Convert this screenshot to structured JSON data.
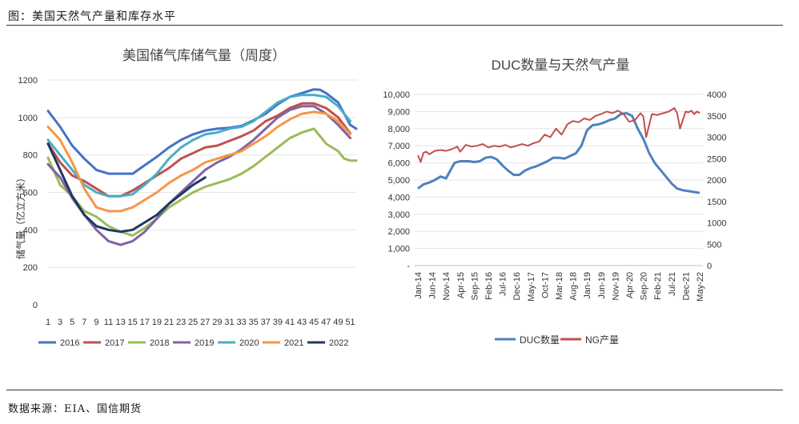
{
  "figure_title": "图：美国天然气产量和库存水平",
  "source": "数据来源：EIA、国信期货",
  "chart_data": [
    {
      "type": "line",
      "title": "美国储气库储气量（周度）",
      "ylabel": "储气量（亿立方米）",
      "xlabel": "",
      "ylim": [
        0,
        1200
      ],
      "yticks": [
        "0",
        "200",
        "400",
        "600",
        "800",
        "1000",
        "1200"
      ],
      "xlim": [
        1,
        52
      ],
      "xticks": [
        "1",
        "3",
        "5",
        "7",
        "9",
        "11",
        "13",
        "15",
        "17",
        "19",
        "21",
        "23",
        "25",
        "27",
        "29",
        "31",
        "33",
        "35",
        "37",
        "39",
        "41",
        "43",
        "45",
        "47",
        "49",
        "51"
      ],
      "grid": true,
      "legend": "bottom",
      "series": [
        {
          "name": "2016",
          "color": "#4472c4",
          "x": [
            1,
            3,
            5,
            7,
            9,
            11,
            13,
            15,
            17,
            19,
            21,
            23,
            25,
            27,
            29,
            31,
            33,
            35,
            37,
            39,
            41,
            43,
            45,
            46,
            47,
            49,
            51,
            52
          ],
          "values": [
            1035,
            950,
            850,
            780,
            720,
            700,
            700,
            700,
            745,
            790,
            840,
            880,
            910,
            930,
            940,
            945,
            955,
            985,
            1020,
            1070,
            1110,
            1130,
            1150,
            1148,
            1130,
            1080,
            960,
            940
          ]
        },
        {
          "name": "2017",
          "color": "#c0504d",
          "x": [
            1,
            3,
            5,
            7,
            9,
            11,
            13,
            15,
            17,
            19,
            21,
            23,
            25,
            27,
            29,
            31,
            33,
            35,
            37,
            39,
            41,
            43,
            45,
            47,
            49,
            51
          ],
          "values": [
            860,
            760,
            690,
            660,
            620,
            580,
            580,
            610,
            650,
            690,
            730,
            780,
            810,
            840,
            850,
            875,
            900,
            930,
            980,
            1010,
            1050,
            1075,
            1075,
            1050,
            1000,
            915
          ]
        },
        {
          "name": "2018",
          "color": "#9bbb59",
          "x": [
            1,
            3,
            5,
            7,
            9,
            11,
            13,
            15,
            17,
            19,
            21,
            23,
            25,
            27,
            29,
            31,
            33,
            35,
            37,
            39,
            41,
            43,
            45,
            47,
            49,
            50,
            51,
            52
          ],
          "values": [
            785,
            640,
            580,
            500,
            470,
            420,
            390,
            370,
            410,
            460,
            520,
            560,
            600,
            630,
            650,
            670,
            700,
            740,
            790,
            840,
            890,
            920,
            940,
            860,
            820,
            780,
            770,
            770
          ]
        },
        {
          "name": "2019",
          "color": "#8064a2",
          "x": [
            1,
            3,
            5,
            7,
            9,
            11,
            13,
            15,
            17,
            19,
            21,
            23,
            25,
            27,
            29,
            31,
            33,
            35,
            37,
            39,
            41,
            43,
            45,
            47,
            49,
            51
          ],
          "values": [
            750,
            680,
            570,
            480,
            400,
            340,
            320,
            340,
            390,
            460,
            540,
            600,
            660,
            720,
            760,
            790,
            830,
            880,
            940,
            1000,
            1040,
            1060,
            1060,
            1020,
            960,
            890
          ]
        },
        {
          "name": "2020",
          "color": "#4bacc6",
          "x": [
            1,
            3,
            5,
            7,
            9,
            11,
            13,
            15,
            17,
            19,
            21,
            23,
            25,
            27,
            29,
            31,
            33,
            35,
            37,
            39,
            41,
            43,
            45,
            47,
            49,
            51
          ],
          "values": [
            880,
            800,
            720,
            640,
            600,
            580,
            580,
            590,
            640,
            700,
            780,
            840,
            880,
            910,
            920,
            940,
            950,
            980,
            1030,
            1080,
            1110,
            1120,
            1120,
            1110,
            1060,
            980
          ]
        },
        {
          "name": "2021",
          "color": "#f79646",
          "x": [
            1,
            3,
            5,
            7,
            9,
            11,
            13,
            15,
            17,
            19,
            21,
            23,
            25,
            27,
            29,
            31,
            33,
            35,
            37,
            39,
            41,
            43,
            45,
            47,
            49,
            51
          ],
          "values": [
            950,
            880,
            760,
            620,
            520,
            500,
            500,
            520,
            560,
            600,
            650,
            690,
            720,
            760,
            780,
            800,
            820,
            860,
            900,
            950,
            990,
            1020,
            1030,
            1020,
            980,
            910
          ]
        },
        {
          "name": "2022",
          "color": "#1f3864",
          "x": [
            1,
            3,
            5,
            7,
            9,
            11,
            13,
            15,
            17,
            19,
            21,
            23,
            25,
            27
          ],
          "values": [
            860,
            720,
            580,
            480,
            420,
            400,
            390,
            400,
            440,
            480,
            540,
            590,
            640,
            680
          ]
        }
      ]
    },
    {
      "type": "line",
      "title": "DUC数量与天然气产量",
      "xlabel": "",
      "ylabel": "",
      "legend": "bottom",
      "grid": true,
      "x_tick_labels": [
        "Jan-14",
        "Jun-14",
        "Nov-14",
        "Apr-15",
        "Sep-15",
        "Feb-16",
        "Jul-16",
        "Dec-16",
        "May-17",
        "Oct-17",
        "Mar-18",
        "Aug-18",
        "Jan-19",
        "Jun-19",
        "Nov-19",
        "Apr-20",
        "Sep-20",
        "Feb-21",
        "Jul-21",
        "Dec-21",
        "May-22"
      ],
      "y_left": {
        "lim": [
          0,
          10000
        ],
        "ticks": [
          "-",
          "1,000",
          "2,000",
          "3,000",
          "4,000",
          "5,000",
          "6,000",
          "7,000",
          "8,000",
          "9,000",
          "10,000"
        ]
      },
      "y_right": {
        "lim": [
          0,
          4000
        ],
        "ticks": [
          "0",
          "500",
          "1000",
          "1500",
          "2000",
          "2500",
          "3000",
          "3500",
          "4000"
        ]
      },
      "series": [
        {
          "name": "DUC数量",
          "axis": "left",
          "color": "#4f81bd",
          "x_months": [
            0,
            2,
            4,
            6,
            8,
            10,
            12,
            13,
            15,
            18,
            20,
            22,
            24,
            26,
            28,
            30,
            32,
            34,
            36,
            38,
            40,
            42,
            44,
            46,
            48,
            50,
            52,
            54,
            56,
            58,
            60,
            62,
            64,
            66,
            68,
            70,
            72,
            74,
            76,
            78,
            80,
            82,
            84,
            86,
            88,
            90,
            92,
            94,
            96,
            98,
            100
          ],
          "values": [
            4500,
            4750,
            4850,
            5000,
            5200,
            5100,
            5700,
            6000,
            6100,
            6100,
            6050,
            6100,
            6300,
            6350,
            6200,
            5850,
            5550,
            5300,
            5300,
            5550,
            5700,
            5800,
            5950,
            6100,
            6300,
            6300,
            6250,
            6400,
            6550,
            7000,
            7900,
            8200,
            8250,
            8350,
            8500,
            8600,
            8850,
            8900,
            8750,
            8000,
            7400,
            6600,
            6000,
            5600,
            5200,
            4800,
            4500,
            4400,
            4350,
            4300,
            4250
          ]
        },
        {
          "name": "NG产量",
          "axis": "right",
          "color": "#c0504d",
          "x_months": [
            0,
            1,
            2,
            3,
            4,
            6,
            8,
            10,
            12,
            14,
            15,
            17,
            19,
            21,
            23,
            25,
            27,
            29,
            31,
            33,
            35,
            37,
            39,
            41,
            43,
            45,
            47,
            49,
            51,
            53,
            55,
            57,
            59,
            61,
            63,
            65,
            67,
            69,
            71,
            73,
            75,
            77,
            79,
            80,
            81,
            83,
            85,
            87,
            89,
            91,
            92,
            93,
            95,
            96,
            97,
            98,
            99,
            100
          ],
          "values": [
            2580,
            2420,
            2640,
            2660,
            2600,
            2680,
            2700,
            2680,
            2720,
            2780,
            2660,
            2820,
            2780,
            2800,
            2840,
            2760,
            2800,
            2780,
            2820,
            2760,
            2800,
            2840,
            2800,
            2860,
            2900,
            3060,
            3000,
            3200,
            3060,
            3300,
            3380,
            3350,
            3440,
            3400,
            3500,
            3540,
            3600,
            3560,
            3620,
            3540,
            3360,
            3400,
            3560,
            3480,
            3000,
            3540,
            3520,
            3560,
            3600,
            3680,
            3560,
            3200,
            3600,
            3580,
            3620,
            3540,
            3600,
            3560
          ]
        }
      ]
    }
  ]
}
